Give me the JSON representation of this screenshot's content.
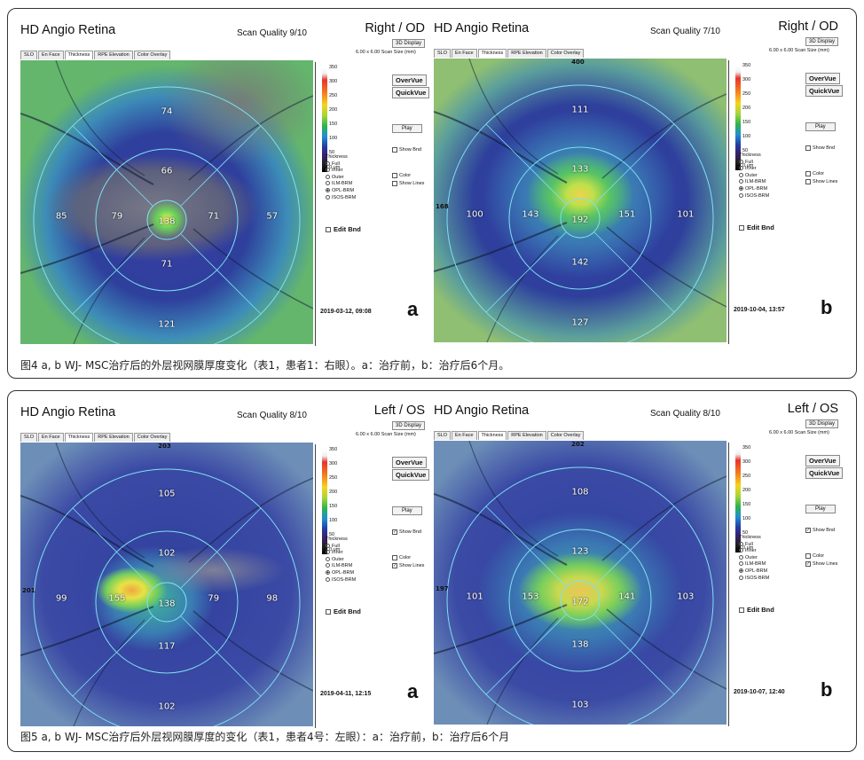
{
  "figures": [
    {
      "caption": "图4 a, b WJ- MSC治疗后的外层视网膜厚度变化（表1，患者1：右眼）。a：治疗前，b：治疗后6个月。",
      "panels": [
        {
          "title": "HD Angio Retina",
          "scan_quality": "Scan Quality 9/10",
          "eye": "Right / OD",
          "tabs": [
            "SLO",
            "En Face",
            "Thickness",
            "RPE Elevation",
            "Color Overlay"
          ],
          "scan_size": "6.00 x 6.00 Scan Size (mm)",
          "sectors": {
            "center": "138",
            "inner_top": "66",
            "inner_bottom": "71",
            "inner_left": "79",
            "inner_right": "71",
            "outer_top": "74",
            "outer_bottom": "121",
            "outer_left": "85",
            "outer_right": "57"
          },
          "edge_values": {
            "top": "",
            "left": "",
            "right": ""
          },
          "scale_ticks": [
            "350",
            "300",
            "250",
            "200",
            "150",
            "100",
            "50",
            "0 μm"
          ],
          "thickness_label": "Thickness",
          "thickness_options": [
            "Full",
            "Inner",
            "Outer",
            "ILM-BRM",
            "OPL-BRM",
            "ISOS-BRM"
          ],
          "selected_option": 4,
          "edit_bnd": "Edit Bnd",
          "buttons": {
            "display3d": "3D Display",
            "overvue": "OverVue",
            "quickvue": "QuickVue",
            "play": "Play"
          },
          "checks": {
            "show_bnd": "Show Bnd",
            "color": "Color",
            "show_lines": "Show Lines"
          },
          "check_state": {
            "show_bnd": false,
            "color": false,
            "show_lines": false
          },
          "date": "2019-03-12, 09:08",
          "letter": "a"
        },
        {
          "title": "HD Angio Retina",
          "scan_quality": "Scan Quality 7/10",
          "eye": "Right / OD",
          "tabs": [
            "SLO",
            "En Face",
            "Thickness",
            "RPE Elevation",
            "Color Overlay"
          ],
          "scan_size": "6.00 x 6.00 Scan Size (mm)",
          "sectors": {
            "center": "192",
            "inner_top": "133",
            "inner_bottom": "142",
            "inner_left": "143",
            "inner_right": "151",
            "outer_top": "111",
            "outer_bottom": "127",
            "outer_left": "100",
            "outer_right": "101"
          },
          "edge_values": {
            "top": "400",
            "left": "168",
            "right": ""
          },
          "scale_ticks": [
            "350",
            "300",
            "250",
            "200",
            "150",
            "100",
            "50",
            "0 μm"
          ],
          "thickness_label": "Thickness",
          "thickness_options": [
            "Full",
            "Inner",
            "Outer",
            "ILM-BRM",
            "OPL-BRM",
            "ISOS-BRM"
          ],
          "selected_option": 4,
          "edit_bnd": "Edit Bnd",
          "buttons": {
            "display3d": "3D Display",
            "overvue": "OverVue",
            "quickvue": "QuickVue",
            "play": "Play"
          },
          "checks": {
            "show_bnd": "Show Bnd",
            "color": "Color",
            "show_lines": "Show Lines"
          },
          "check_state": {
            "show_bnd": false,
            "color": false,
            "show_lines": false
          },
          "date": "2019-10-04, 13:57",
          "letter": "b"
        }
      ]
    },
    {
      "caption": "图5 a, b WJ- MSC治疗后外层视网膜厚度的变化（表1，患者4号：左眼）：a：治疗前，b：治疗后6个月",
      "panels": [
        {
          "title": "HD Angio Retina",
          "scan_quality": "Scan Quality 8/10",
          "eye": "Left / OS",
          "tabs": [
            "SLO",
            "En Face",
            "Thickness",
            "RPE Elevation",
            "Color Overlay"
          ],
          "scan_size": "6.00 x 6.00 Scan Size (mm)",
          "sectors": {
            "center": "138",
            "inner_top": "102",
            "inner_bottom": "117",
            "inner_left": "155",
            "inner_right": "79",
            "outer_top": "105",
            "outer_bottom": "102",
            "outer_left": "99",
            "outer_right": "98"
          },
          "edge_values": {
            "top": "203",
            "left": "201",
            "right": ""
          },
          "scale_ticks": [
            "350",
            "300",
            "250",
            "200",
            "150",
            "100",
            "50",
            "0 μm"
          ],
          "thickness_label": "Thickness",
          "thickness_options": [
            "Full",
            "Inner",
            "Outer",
            "ILM-BRM",
            "OPL-BRM",
            "ISOS-BRM"
          ],
          "selected_option": 4,
          "edit_bnd": "Edit Bnd",
          "buttons": {
            "display3d": "3D Display",
            "overvue": "OverVue",
            "quickvue": "QuickVue",
            "play": "Play"
          },
          "checks": {
            "show_bnd": "Show Bnd",
            "color": "Color",
            "show_lines": "Show Lines"
          },
          "check_state": {
            "show_bnd": true,
            "color": false,
            "show_lines": true
          },
          "date": "2019-04-11, 12:15",
          "letter": "a"
        },
        {
          "title": "HD Angio Retina",
          "scan_quality": "Scan Quality 8/10",
          "eye": "Left / OS",
          "tabs": [
            "SLO",
            "En Face",
            "Thickness",
            "RPE Elevation",
            "Color Overlay"
          ],
          "scan_size": "6.00 x 6.00 Scan Size (mm)",
          "sectors": {
            "center": "172",
            "inner_top": "123",
            "inner_bottom": "138",
            "inner_left": "153",
            "inner_right": "141",
            "outer_top": "108",
            "outer_bottom": "103",
            "outer_left": "101",
            "outer_right": "103"
          },
          "edge_values": {
            "top": "202",
            "left": "197",
            "right": ""
          },
          "scale_ticks": [
            "350",
            "300",
            "250",
            "200",
            "150",
            "100",
            "50",
            "0 μm"
          ],
          "thickness_label": "Thickness",
          "thickness_options": [
            "Full",
            "Inner",
            "Outer",
            "ILM-BRM",
            "OPL-BRM",
            "ISOS-BRM"
          ],
          "selected_option": 4,
          "edit_bnd": "Edit Bnd",
          "buttons": {
            "display3d": "3D Display",
            "overvue": "OverVue",
            "quickvue": "QuickVue",
            "play": "Play"
          },
          "checks": {
            "show_bnd": "Show Bnd",
            "color": "Color",
            "show_lines": "Show Lines"
          },
          "check_state": {
            "show_bnd": true,
            "color": false,
            "show_lines": true
          },
          "date": "2019-10-07, 12:40",
          "letter": "b"
        }
      ]
    }
  ]
}
